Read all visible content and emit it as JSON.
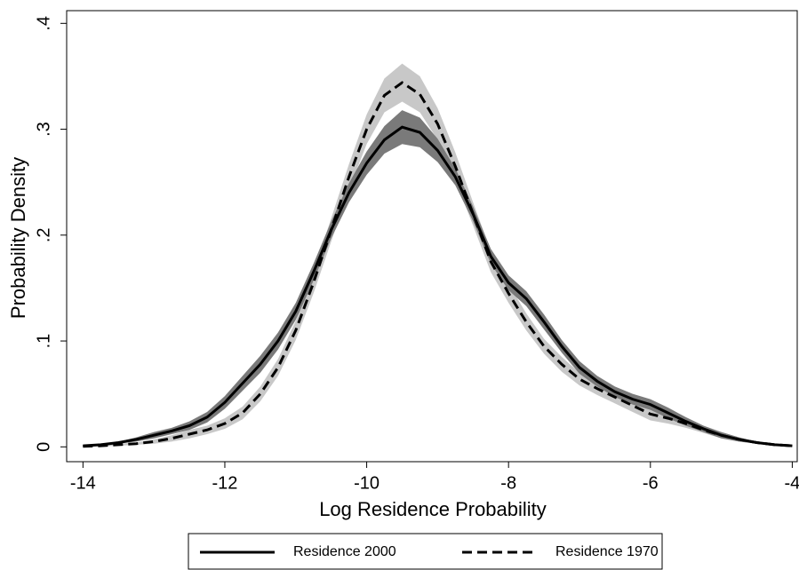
{
  "chart_data": {
    "type": "density-band",
    "xlabel": "Log Residence Probability",
    "ylabel": "Probability Density",
    "xlim": [
      -14.23,
      -3.93
    ],
    "ylim": [
      -0.014,
      0.412
    ],
    "xticks": [
      -14,
      -12,
      -10,
      -8,
      -6,
      -4
    ],
    "yticks": [
      {
        "value": 0,
        "label": "0"
      },
      {
        "value": 0.1,
        "label": ".1"
      },
      {
        "value": 0.2,
        "label": ".2"
      },
      {
        "value": 0.3,
        "label": ".3"
      },
      {
        "value": 0.4,
        "label": ".4"
      }
    ],
    "grid": false,
    "legend": "bottom",
    "x": [
      -14,
      -13.75,
      -13.5,
      -13.25,
      -13,
      -12.75,
      -12.5,
      -12.25,
      -12,
      -11.75,
      -11.5,
      -11.25,
      -11,
      -10.75,
      -10.5,
      -10.25,
      -10,
      -9.75,
      -9.5,
      -9.25,
      -9,
      -8.75,
      -8.5,
      -8.25,
      -8,
      -7.75,
      -7.5,
      -7.25,
      -7,
      -6.75,
      -6.5,
      -6.25,
      -6,
      -5.75,
      -5.5,
      -5.25,
      -5,
      -4.75,
      -4.5,
      -4.25,
      -4
    ],
    "series": [
      {
        "name": "Residence 1970",
        "color": "#000000",
        "band_color": "#c8c8c8",
        "dash": "dashed",
        "values": [
          0.0005,
          0.001,
          0.002,
          0.003,
          0.005,
          0.008,
          0.012,
          0.016,
          0.022,
          0.032,
          0.05,
          0.075,
          0.11,
          0.155,
          0.205,
          0.255,
          0.3,
          0.332,
          0.344,
          0.333,
          0.305,
          0.265,
          0.22,
          0.175,
          0.145,
          0.118,
          0.095,
          0.078,
          0.064,
          0.055,
          0.047,
          0.039,
          0.031,
          0.027,
          0.022,
          0.016,
          0.011,
          0.007,
          0.004,
          0.002,
          0.001
        ],
        "lower": [
          0,
          0.0005,
          0.001,
          0.002,
          0.003,
          0.005,
          0.008,
          0.012,
          0.017,
          0.026,
          0.043,
          0.067,
          0.101,
          0.145,
          0.194,
          0.243,
          0.286,
          0.316,
          0.326,
          0.316,
          0.29,
          0.252,
          0.209,
          0.165,
          0.136,
          0.11,
          0.088,
          0.071,
          0.058,
          0.049,
          0.041,
          0.033,
          0.025,
          0.022,
          0.018,
          0.013,
          0.008,
          0.005,
          0.003,
          0.001,
          0.0005
        ],
        "upper": [
          0.001,
          0.0015,
          0.003,
          0.004,
          0.007,
          0.011,
          0.016,
          0.02,
          0.027,
          0.038,
          0.057,
          0.083,
          0.119,
          0.165,
          0.216,
          0.267,
          0.314,
          0.348,
          0.362,
          0.35,
          0.32,
          0.278,
          0.231,
          0.185,
          0.154,
          0.126,
          0.102,
          0.085,
          0.07,
          0.061,
          0.053,
          0.045,
          0.037,
          0.032,
          0.026,
          0.019,
          0.014,
          0.009,
          0.005,
          0.003,
          0.0015
        ]
      },
      {
        "name": "Residence 2000",
        "color": "#000000",
        "band_color": "#7a7a7a",
        "dash": "solid",
        "values": [
          0.001,
          0.002,
          0.004,
          0.007,
          0.011,
          0.015,
          0.02,
          0.028,
          0.042,
          0.06,
          0.078,
          0.1,
          0.128,
          0.165,
          0.205,
          0.24,
          0.268,
          0.29,
          0.302,
          0.297,
          0.28,
          0.255,
          0.22,
          0.18,
          0.155,
          0.14,
          0.118,
          0.095,
          0.075,
          0.062,
          0.052,
          0.045,
          0.04,
          0.032,
          0.024,
          0.017,
          0.011,
          0.007,
          0.004,
          0.002,
          0.001
        ],
        "lower": [
          0.0005,
          0.001,
          0.003,
          0.005,
          0.008,
          0.012,
          0.016,
          0.023,
          0.036,
          0.053,
          0.07,
          0.092,
          0.12,
          0.157,
          0.197,
          0.231,
          0.257,
          0.277,
          0.286,
          0.283,
          0.269,
          0.247,
          0.213,
          0.173,
          0.148,
          0.133,
          0.111,
          0.089,
          0.069,
          0.057,
          0.047,
          0.04,
          0.035,
          0.027,
          0.02,
          0.014,
          0.008,
          0.005,
          0.003,
          0.001,
          0.0005
        ],
        "upper": [
          0.0015,
          0.003,
          0.005,
          0.009,
          0.014,
          0.018,
          0.024,
          0.033,
          0.048,
          0.067,
          0.086,
          0.108,
          0.136,
          0.173,
          0.213,
          0.249,
          0.279,
          0.303,
          0.318,
          0.311,
          0.291,
          0.263,
          0.227,
          0.187,
          0.162,
          0.147,
          0.125,
          0.101,
          0.081,
          0.067,
          0.057,
          0.05,
          0.045,
          0.037,
          0.028,
          0.02,
          0.014,
          0.009,
          0.005,
          0.003,
          0.0015
        ]
      }
    ]
  }
}
